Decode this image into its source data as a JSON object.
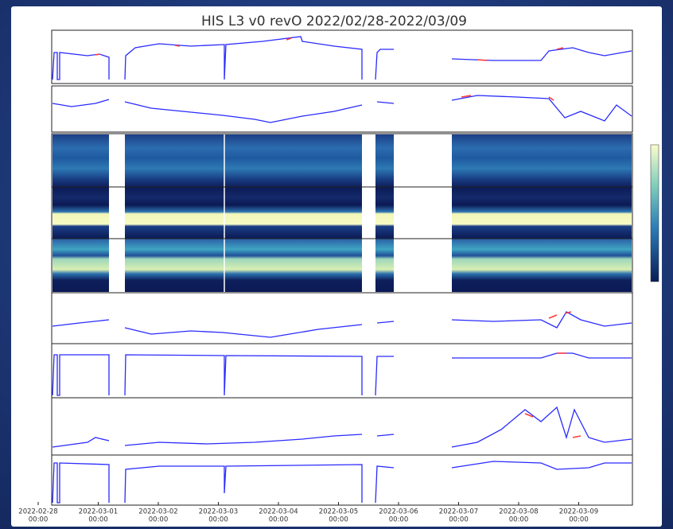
{
  "figure": {
    "title": "HIS L3 v0 revO 2022/02/28-2022/03/09",
    "x_ticks": [
      {
        "date": "2022-02-28",
        "time": "00:00"
      },
      {
        "date": "2022-03-01",
        "time": "00:00"
      },
      {
        "date": "2022-03-02",
        "time": "00:00"
      },
      {
        "date": "2022-03-03",
        "time": "00:00"
      },
      {
        "date": "2022-03-04",
        "time": "00:00"
      },
      {
        "date": "2022-03-05",
        "time": "00:00"
      },
      {
        "date": "2022-03-06",
        "time": "00:00"
      },
      {
        "date": "2022-03-07",
        "time": "00:00"
      },
      {
        "date": "2022-03-08",
        "time": "00:00"
      },
      {
        "date": "2022-03-09",
        "time": "00:00"
      }
    ]
  }
}
